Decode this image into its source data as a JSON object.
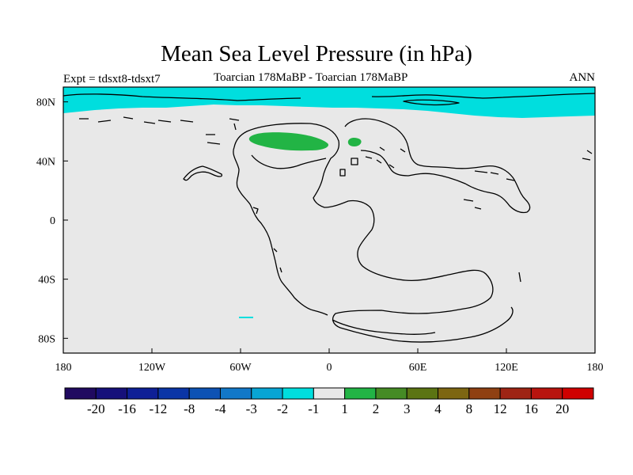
{
  "title": "Mean Sea Level Pressure (in hPa)",
  "subtitle_left": "Expt = tdsxt8-tdsxt7",
  "subtitle_center": "Toarcian 178MaBP - Toarcian 178MaBP",
  "subtitle_right": "ANN",
  "map": {
    "lon_range": [
      -180,
      180
    ],
    "lat_range": [
      -90,
      90
    ],
    "background_color": "#e8e8e8",
    "x_ticks": [
      {
        "lon": -180,
        "label": "180"
      },
      {
        "lon": -120,
        "label": "120W"
      },
      {
        "lon": -60,
        "label": "60W"
      },
      {
        "lon": 0,
        "label": "0"
      },
      {
        "lon": 60,
        "label": "60E"
      },
      {
        "lon": 120,
        "label": "120E"
      },
      {
        "lon": 180,
        "label": "180"
      }
    ],
    "y_ticks": [
      {
        "lat": 80,
        "label": "80N"
      },
      {
        "lat": 40,
        "label": "40N"
      },
      {
        "lat": 0,
        "label": "0"
      },
      {
        "lat": -40,
        "label": "40S"
      },
      {
        "lat": -80,
        "label": "80S"
      }
    ],
    "anomaly_regions": [
      {
        "name": "arctic-negative-band",
        "level": "-2 to -1",
        "color": "#00dede"
      },
      {
        "name": "pangea-north-positive-blob",
        "level": "1 to 2",
        "color": "#22b445"
      },
      {
        "name": "tethys-positive-blob",
        "level": "1 to 2",
        "color": "#22b445"
      },
      {
        "name": "southern-pacific-negative-streak",
        "level": "-2 to -1",
        "color": "#00dede"
      }
    ]
  },
  "colorbar": {
    "colors": [
      "#200a60",
      "#16107a",
      "#0e1f96",
      "#0a35a6",
      "#0d52b4",
      "#1278c8",
      "#08a5d4",
      "#00dede",
      "#e8e8e8",
      "#22b445",
      "#458b25",
      "#5b7413",
      "#7d6612",
      "#8f4012",
      "#9e2414",
      "#b8140e",
      "#cf0000"
    ],
    "labels": [
      "-20",
      "-16",
      "-12",
      "-8",
      "-4",
      "-3",
      "-2",
      "-1",
      "1",
      "2",
      "3",
      "4",
      "8",
      "12",
      "16",
      "20"
    ]
  }
}
